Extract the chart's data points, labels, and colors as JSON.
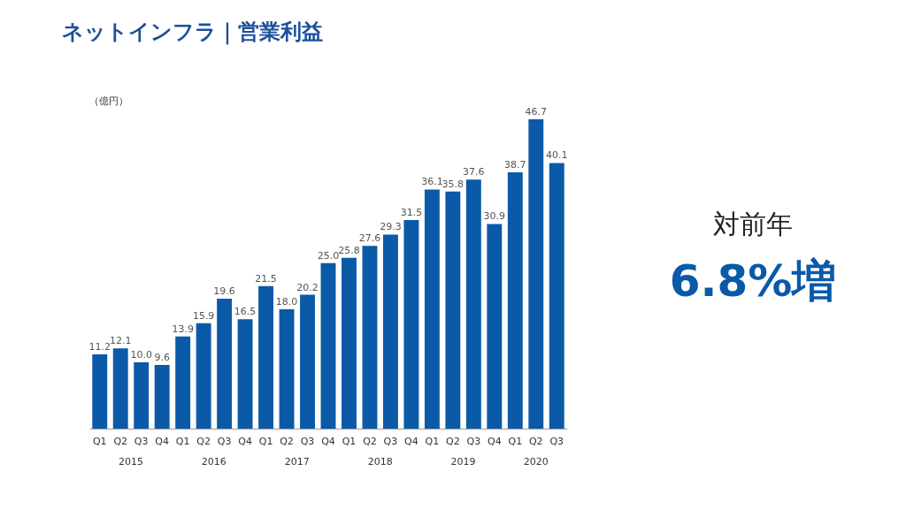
{
  "chart_data": {
    "type": "bar",
    "title": "ネットインフラ｜営業利益",
    "ylabel": "（億円）",
    "categories": [
      "Q1",
      "Q2",
      "Q3",
      "Q4",
      "Q1",
      "Q2",
      "Q3",
      "Q4",
      "Q1",
      "Q2",
      "Q3",
      "Q4",
      "Q1",
      "Q2",
      "Q3",
      "Q4",
      "Q1",
      "Q2",
      "Q3",
      "Q4",
      "Q1",
      "Q2",
      "Q3"
    ],
    "values": [
      11.2,
      12.1,
      10.0,
      9.6,
      13.9,
      15.9,
      19.6,
      16.5,
      21.5,
      18.0,
      20.2,
      25.0,
      25.8,
      27.6,
      29.3,
      31.5,
      36.1,
      35.8,
      37.6,
      30.9,
      38.7,
      46.7,
      40.1
    ],
    "value_labels": [
      "11.2",
      "12.1",
      "10.0",
      "9.6",
      "13.9",
      "15.9",
      "19.6",
      "16.5",
      "21.5",
      "18.0",
      "20.2",
      "25.0",
      "25.8",
      "27.6",
      "29.3",
      "31.5",
      "36.1",
      "35.8",
      "37.6",
      "30.9",
      "38.7",
      "46.7",
      "40.1"
    ],
    "color": "#0a5aa8",
    "grid": false,
    "tick_labels": "x",
    "annotations": [
      "2015",
      "2016",
      "2017",
      "2018",
      "2019",
      "2020",
      "対前年",
      "6.8%増"
    ]
  }
}
